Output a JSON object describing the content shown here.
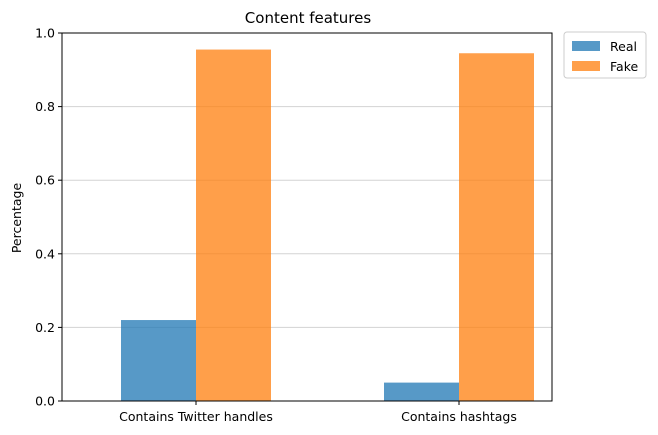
{
  "chart_data": {
    "type": "bar",
    "title": "Content features",
    "xlabel": "",
    "ylabel": "Percentage",
    "categories": [
      "Contains Twitter handles",
      "Contains hashtags"
    ],
    "series": [
      {
        "name": "Real",
        "values": [
          0.22,
          0.05
        ],
        "color": "#1f77b4"
      },
      {
        "name": "Fake",
        "values": [
          0.955,
          0.945
        ],
        "color": "#ff7f0e"
      }
    ],
    "ylim": [
      0,
      1.0
    ],
    "yticks": [
      "0.0",
      "0.2",
      "0.4",
      "0.6",
      "0.8",
      "1.0"
    ],
    "grid": "horizontal",
    "legend_position": "outside top-right",
    "bar_opacity": 0.75
  }
}
